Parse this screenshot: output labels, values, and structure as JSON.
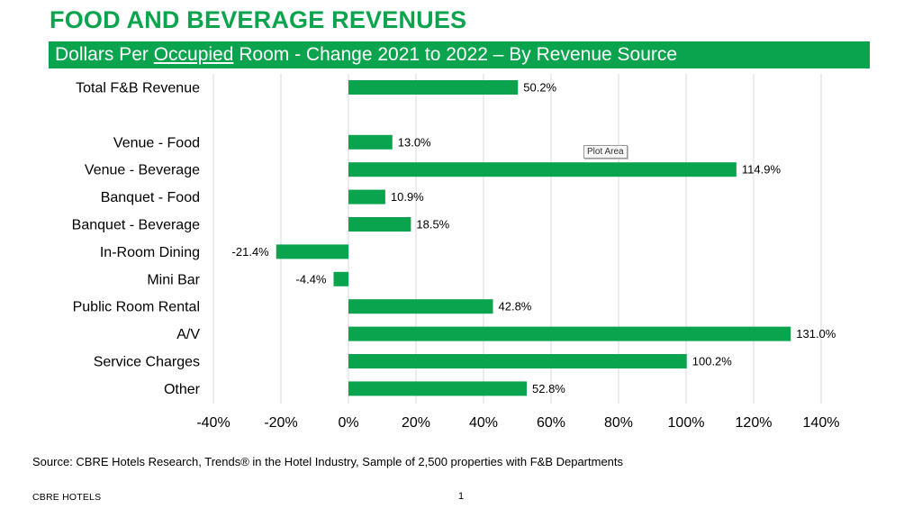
{
  "title": "FOOD AND BEVERAGE REVENUES",
  "subtitle": {
    "prefix": "Dollars Per ",
    "underlined": "Occupied",
    "suffix": " Room - Change 2021 to 2022 – By Revenue Source"
  },
  "tooltip": "Plot Area",
  "source": "Source: CBRE Hotels Research, Trends® in the Hotel Industry, Sample of 2,500 properties with F&B Departments",
  "footer": "CBRE HOTELS",
  "page_number": "1",
  "colors": {
    "accent": "#0aa44e",
    "bar": "#0aa44e",
    "grid": "#d9d9d9"
  },
  "chart_data": {
    "type": "bar",
    "orientation": "horizontal",
    "categories": [
      "Total F&B Revenue",
      "",
      "Venue - Food",
      "Venue - Beverage",
      "Banquet - Food",
      "Banquet - Beverage",
      "In-Room Dining",
      "Mini Bar",
      "Public Room Rental",
      "A/V",
      "Service Charges",
      "Other"
    ],
    "values": [
      50.2,
      null,
      13.0,
      114.9,
      10.9,
      18.5,
      -21.4,
      -4.4,
      42.8,
      131.0,
      100.2,
      52.8
    ],
    "data_labels": [
      "50.2%",
      "",
      "13.0%",
      "114.9%",
      "10.9%",
      "18.5%",
      "-21.4%",
      "-4.4%",
      "42.8%",
      "131.0%",
      "100.2%",
      "52.8%"
    ],
    "xlim": [
      -40,
      140
    ],
    "xticks": [
      -40,
      -20,
      0,
      20,
      40,
      60,
      80,
      100,
      120,
      140
    ],
    "xtick_labels": [
      "-40%",
      "-20%",
      "0%",
      "20%",
      "40%",
      "60%",
      "80%",
      "100%",
      "120%",
      "140%"
    ],
    "grid": "vertical",
    "legend": "none"
  }
}
